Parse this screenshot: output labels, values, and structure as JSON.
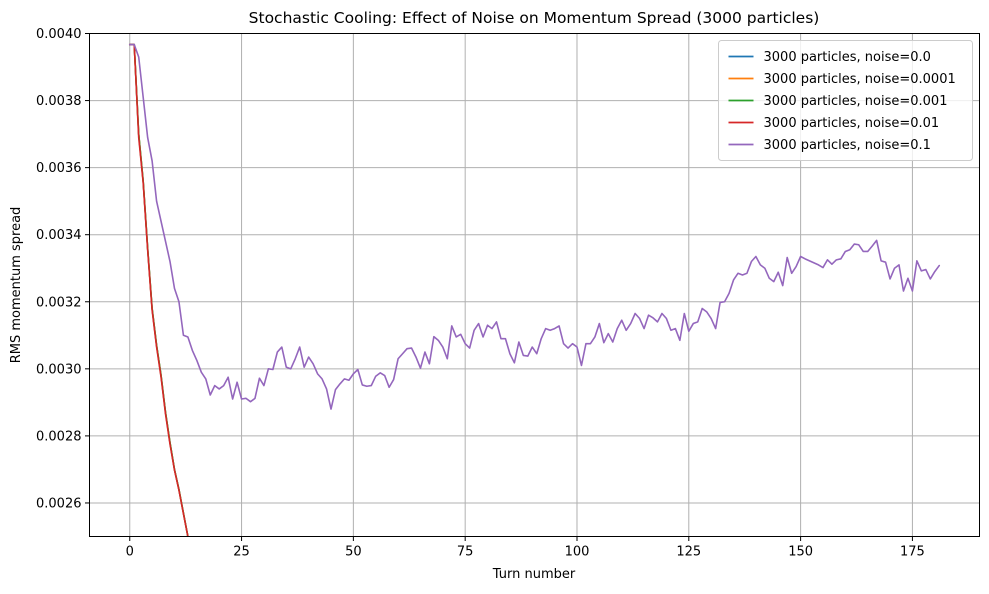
{
  "chart_data": {
    "type": "line",
    "title": "Stochastic Cooling: Effect of Noise on Momentum Spread (3000 particles)",
    "xlabel": "Turn number",
    "ylabel": "RMS momentum spread",
    "xlim": [
      -9,
      190
    ],
    "ylim": [
      0.0025,
      0.004
    ],
    "x_ticks": [
      0,
      25,
      50,
      75,
      100,
      125,
      150,
      175
    ],
    "x_tick_labels": [
      "0",
      "25",
      "50",
      "75",
      "100",
      "125",
      "150",
      "175"
    ],
    "y_ticks": [
      0.0026,
      0.0028,
      0.003,
      0.0032,
      0.0034,
      0.0036,
      0.0038,
      0.004
    ],
    "y_tick_labels": [
      "0.0026",
      "0.0028",
      "0.0030",
      "0.0032",
      "0.0034",
      "0.0036",
      "0.0038",
      "0.0040"
    ],
    "grid": true,
    "legend_position": "top-right",
    "series": [
      {
        "name": "3000 particles, noise=0.0",
        "color": "#1f77b4",
        "x": [
          0,
          1,
          2,
          3,
          4,
          5,
          6,
          7,
          8,
          9,
          10,
          11,
          12,
          13,
          14,
          15
        ],
        "values": [
          0.003967,
          0.003967,
          0.0037,
          0.00356,
          0.00336,
          0.00318,
          0.00307,
          0.00298,
          0.00287,
          0.00278,
          0.0027,
          0.00264,
          0.00257,
          0.0025,
          0.00244,
          0.00238
        ]
      },
      {
        "name": "3000 particles, noise=0.0001",
        "color": "#ff7f0e",
        "x": [
          0,
          1,
          2,
          3,
          4,
          5,
          6,
          7,
          8,
          9,
          10,
          11,
          12,
          13,
          14,
          15
        ],
        "values": [
          0.003967,
          0.003967,
          0.0037,
          0.00356,
          0.00336,
          0.00318,
          0.00307,
          0.00298,
          0.00287,
          0.00278,
          0.0027,
          0.00264,
          0.00257,
          0.0025,
          0.00244,
          0.00238
        ]
      },
      {
        "name": "3000 particles, noise=0.001",
        "color": "#2ca02c",
        "x": [
          0,
          1,
          2,
          3,
          4,
          5,
          6,
          7,
          8,
          9,
          10,
          11,
          12,
          13,
          14,
          15
        ],
        "values": [
          0.003967,
          0.003967,
          0.0037,
          0.00356,
          0.00336,
          0.00318,
          0.00307,
          0.00298,
          0.00287,
          0.00278,
          0.0027,
          0.00264,
          0.00257,
          0.0025,
          0.00244,
          0.00238
        ]
      },
      {
        "name": "3000 particles, noise=0.01",
        "color": "#d62728",
        "x": [
          0,
          1,
          2,
          3,
          4,
          5,
          6,
          7,
          8,
          9,
          10,
          11,
          12,
          13,
          14,
          15
        ],
        "values": [
          0.003967,
          0.003967,
          0.00369,
          0.003555,
          0.003355,
          0.003175,
          0.003065,
          0.002975,
          0.002865,
          0.002775,
          0.002698,
          0.002638,
          0.002568,
          0.0025,
          0.00244,
          0.00238
        ]
      },
      {
        "name": "3000 particles, noise=0.1",
        "color": "#9467bd",
        "x": [
          0,
          1,
          2,
          3,
          4,
          5,
          6,
          7,
          8,
          9,
          10,
          11,
          12,
          13,
          14,
          15,
          16,
          17,
          18,
          19,
          20,
          21,
          22,
          23,
          24,
          25,
          26,
          27,
          28,
          29,
          30,
          31,
          32,
          33,
          34,
          35,
          36,
          37,
          38,
          39,
          40,
          41,
          42,
          43,
          44,
          45,
          46,
          47,
          48,
          49,
          50,
          51,
          52,
          53,
          54,
          55,
          56,
          57,
          58,
          59,
          60,
          61,
          62,
          63,
          64,
          65,
          66,
          67,
          68,
          69,
          70,
          71,
          72,
          73,
          74,
          75,
          76,
          77,
          78,
          79,
          80,
          81,
          82,
          83,
          84,
          85,
          86,
          87,
          88,
          89,
          90,
          91,
          92,
          93,
          94,
          95,
          96,
          97,
          98,
          99,
          100,
          101,
          102,
          103,
          104,
          105,
          106,
          107,
          108,
          109,
          110,
          111,
          112,
          113,
          114,
          115,
          116,
          117,
          118,
          119,
          120,
          121,
          122,
          123,
          124,
          125,
          126,
          127,
          128,
          129,
          130,
          131,
          132,
          133,
          134,
          135,
          136,
          137,
          138,
          139,
          140,
          141,
          142,
          143,
          144,
          145,
          146,
          147,
          148,
          149,
          150,
          151,
          152,
          153,
          154,
          155,
          156,
          157,
          158,
          159,
          160,
          161,
          162,
          163,
          164,
          165,
          166,
          167,
          168,
          169,
          170,
          171,
          172,
          173,
          174,
          175,
          176,
          177,
          178,
          179,
          180,
          181
        ],
        "values": [
          0.003967,
          0.003967,
          0.00393,
          0.00381,
          0.00369,
          0.00362,
          0.0035,
          0.00344,
          0.00338,
          0.00332,
          0.00324,
          0.0032,
          0.0031,
          0.003095,
          0.003055,
          0.003025,
          0.00299,
          0.00297,
          0.002922,
          0.00295,
          0.00294,
          0.00295,
          0.002975,
          0.00291,
          0.00296,
          0.00291,
          0.002912,
          0.002902,
          0.002912,
          0.002972,
          0.00295,
          0.003,
          0.002998,
          0.00305,
          0.003065,
          0.003005,
          0.003,
          0.00303,
          0.003065,
          0.003005,
          0.003035,
          0.003015,
          0.002985,
          0.00297,
          0.00294,
          0.00288,
          0.002938,
          0.002955,
          0.00297,
          0.002966,
          0.002985,
          0.002998,
          0.002952,
          0.002948,
          0.00295,
          0.002978,
          0.002988,
          0.00298,
          0.002945,
          0.002968,
          0.00303,
          0.003045,
          0.00306,
          0.003062,
          0.003035,
          0.003002,
          0.00305,
          0.003015,
          0.003096,
          0.003085,
          0.003065,
          0.00303,
          0.003128,
          0.003095,
          0.003103,
          0.003075,
          0.003062,
          0.003115,
          0.003135,
          0.003095,
          0.00313,
          0.00312,
          0.00314,
          0.00309,
          0.00309,
          0.003045,
          0.003018,
          0.00308,
          0.00304,
          0.003038,
          0.003065,
          0.003045,
          0.00309,
          0.00312,
          0.003115,
          0.00312,
          0.003128,
          0.003075,
          0.003062,
          0.003075,
          0.003065,
          0.00301,
          0.003075,
          0.003075,
          0.003095,
          0.003135,
          0.003078,
          0.003105,
          0.00308,
          0.00312,
          0.003145,
          0.003115,
          0.003135,
          0.003165,
          0.00315,
          0.00312,
          0.00316,
          0.003152,
          0.00314,
          0.003165,
          0.00315,
          0.003115,
          0.00312,
          0.003085,
          0.003165,
          0.003112,
          0.003135,
          0.00314,
          0.00318,
          0.00317,
          0.00315,
          0.00312,
          0.003198,
          0.0032,
          0.003225,
          0.003265,
          0.003285,
          0.00328,
          0.003285,
          0.00332,
          0.003335,
          0.00331,
          0.0033,
          0.00327,
          0.00326,
          0.003288,
          0.003248,
          0.003332,
          0.003285,
          0.003305,
          0.003335,
          0.003328,
          0.003322,
          0.003316,
          0.00331,
          0.003302,
          0.003325,
          0.003312,
          0.003325,
          0.003328,
          0.00335,
          0.003355,
          0.003372,
          0.00337,
          0.00335,
          0.00335,
          0.003366,
          0.003383,
          0.003322,
          0.003318,
          0.003268,
          0.0033,
          0.00331,
          0.003232,
          0.00327,
          0.003232,
          0.003322,
          0.003292,
          0.003296,
          0.003268,
          0.00329,
          0.003308
        ]
      }
    ]
  }
}
